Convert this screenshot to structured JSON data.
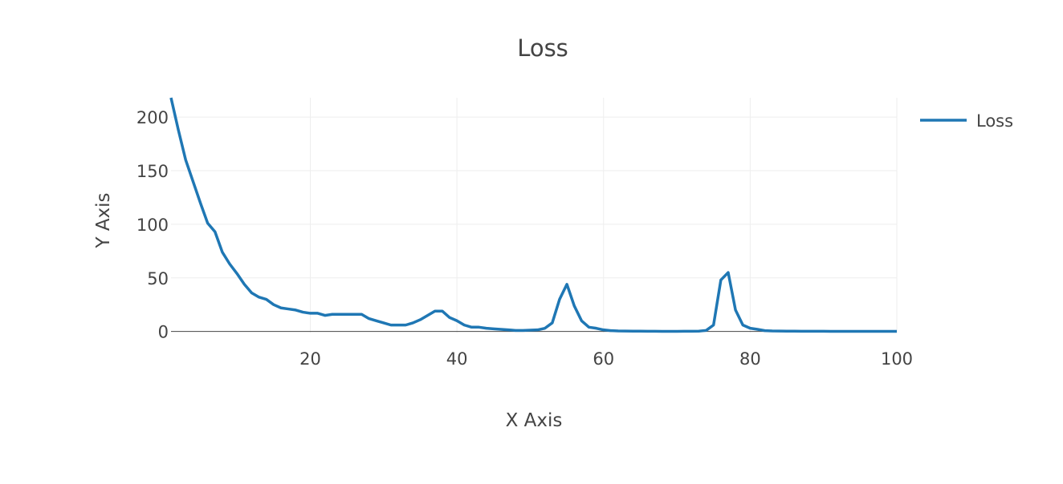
{
  "chart_data": {
    "type": "line",
    "title": "Loss",
    "xlabel": "X Axis",
    "ylabel": "Y Axis",
    "xlim": [
      1,
      100
    ],
    "ylim": [
      -1,
      218
    ],
    "xticks": [
      20,
      40,
      60,
      80,
      100
    ],
    "yticks": [
      0,
      50,
      100,
      150,
      200
    ],
    "xtick_labels": [
      "20",
      "40",
      "60",
      "80",
      "100"
    ],
    "ytick_labels": [
      "0",
      "50",
      "100",
      "150",
      "200"
    ],
    "grid": true,
    "legend": {
      "position": "top-right",
      "entries": [
        "Loss"
      ]
    },
    "series": [
      {
        "name": "Loss",
        "color": "#1f77b4",
        "x": [
          1,
          2,
          3,
          4,
          5,
          6,
          7,
          8,
          9,
          10,
          11,
          12,
          13,
          14,
          15,
          16,
          17,
          18,
          19,
          20,
          21,
          22,
          23,
          24,
          25,
          26,
          27,
          28,
          29,
          30,
          31,
          32,
          33,
          34,
          35,
          36,
          37,
          38,
          39,
          40,
          41,
          42,
          43,
          44,
          45,
          46,
          47,
          48,
          49,
          50,
          51,
          52,
          53,
          54,
          55,
          56,
          57,
          58,
          59,
          60,
          61,
          62,
          63,
          64,
          65,
          66,
          67,
          68,
          69,
          70,
          71,
          72,
          73,
          74,
          75,
          76,
          77,
          78,
          79,
          80,
          81,
          82,
          83,
          84,
          85,
          86,
          87,
          88,
          89,
          90,
          91,
          92,
          93,
          94,
          95,
          96,
          97,
          98,
          99,
          100
        ],
        "values": [
          218,
          188,
          160,
          140,
          120,
          101,
          93,
          74,
          63,
          54,
          44,
          36,
          32,
          30,
          25,
          22,
          21,
          20,
          18,
          17,
          17,
          15,
          16,
          16,
          16,
          16,
          16,
          12,
          10,
          8,
          6,
          6,
          6,
          8,
          11,
          15,
          19,
          19,
          13,
          10,
          6,
          4,
          4,
          3,
          2.5,
          2,
          1.5,
          1,
          1,
          1.2,
          1.5,
          3,
          8,
          30,
          44,
          24,
          10,
          4,
          3,
          1.5,
          0.8,
          0.5,
          0.4,
          0.3,
          0.3,
          0.2,
          0.2,
          0.1,
          0.1,
          0.1,
          0.2,
          0.2,
          0.3,
          1,
          6,
          48,
          55,
          20,
          6,
          3,
          2,
          0.8,
          0.5,
          0.4,
          0.3,
          0.3,
          0.2,
          0.2,
          0.2,
          0.2,
          0.1,
          0.1,
          0.1,
          0.1,
          0.1,
          0.1,
          0.1,
          0.1,
          0.1,
          0.1
        ]
      }
    ]
  }
}
